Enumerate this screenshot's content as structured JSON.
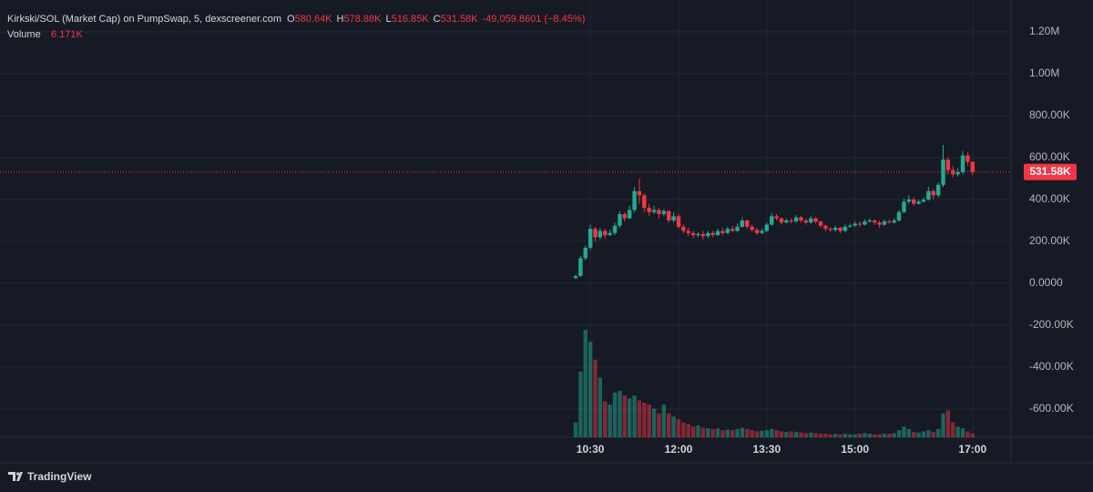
{
  "chart_data": {
    "type": "candlestick",
    "title": "Kirkski/SOL (Market Cap) on PumpSwap, 5, dexscreener.com",
    "ohlc_legend": [
      {
        "key": "O",
        "value": "580.64K"
      },
      {
        "key": "H",
        "value": "578.88K"
      },
      {
        "key": "L",
        "value": "516.85K"
      },
      {
        "key": "C",
        "value": "531.58K"
      }
    ],
    "change": "-49,059.8601 (−8.45%)",
    "last_price_label": "531.58K",
    "brand": "TradingView",
    "up_color": "#22ab94",
    "down_color": "#f23645",
    "grid": true,
    "x": [
      "10:15",
      "10:20",
      "10:25",
      "10:30",
      "10:35",
      "10:40",
      "10:45",
      "10:50",
      "10:55",
      "11:00",
      "11:05",
      "11:10",
      "11:15",
      "11:20",
      "11:25",
      "11:30",
      "11:35",
      "11:40",
      "11:45",
      "11:50",
      "11:55",
      "12:00",
      "12:05",
      "12:10",
      "12:15",
      "12:20",
      "12:25",
      "12:30",
      "12:35",
      "12:40",
      "12:45",
      "12:50",
      "12:55",
      "13:00",
      "13:05",
      "13:10",
      "13:15",
      "13:20",
      "13:25",
      "13:30",
      "13:35",
      "13:40",
      "13:45",
      "13:50",
      "13:55",
      "14:00",
      "14:05",
      "14:10",
      "14:15",
      "14:20",
      "14:25",
      "14:30",
      "14:35",
      "14:40",
      "14:45",
      "14:50",
      "14:55",
      "15:00",
      "15:05",
      "15:10",
      "15:15",
      "15:20",
      "15:25",
      "15:30",
      "15:35",
      "15:40",
      "15:45",
      "15:50",
      "15:55",
      "16:00",
      "16:05",
      "16:10",
      "16:15",
      "16:20",
      "16:25",
      "16:30",
      "16:35",
      "16:40",
      "16:45",
      "16:50",
      "16:55",
      "17:00"
    ],
    "open": [
      25000,
      35000,
      120000,
      170000,
      260000,
      220000,
      250000,
      230000,
      240000,
      275000,
      330000,
      310000,
      350000,
      440000,
      420000,
      360000,
      340000,
      350000,
      330000,
      345000,
      300000,
      320000,
      270000,
      250000,
      240000,
      230000,
      235000,
      225000,
      240000,
      230000,
      250000,
      240000,
      260000,
      250000,
      270000,
      300000,
      270000,
      255000,
      240000,
      250000,
      280000,
      320000,
      310000,
      290000,
      300000,
      295000,
      315000,
      300000,
      290000,
      310000,
      295000,
      275000,
      260000,
      255000,
      265000,
      250000,
      270000,
      275000,
      285000,
      280000,
      295000,
      300000,
      290000,
      280000,
      295000,
      290000,
      300000,
      340000,
      390000,
      400000,
      380000,
      390000,
      400000,
      440000,
      420000,
      470000,
      590000,
      540000,
      520000,
      530000,
      610000,
      580640
    ],
    "high": [
      40000,
      130000,
      180000,
      280000,
      270000,
      265000,
      260000,
      255000,
      290000,
      345000,
      340000,
      370000,
      460000,
      500000,
      430000,
      380000,
      370000,
      360000,
      355000,
      350000,
      340000,
      330000,
      280000,
      265000,
      250000,
      245000,
      250000,
      250000,
      250000,
      260000,
      265000,
      270000,
      275000,
      285000,
      315000,
      305000,
      280000,
      265000,
      262000,
      290000,
      335000,
      330000,
      315000,
      310000,
      310000,
      325000,
      320000,
      310000,
      320000,
      315000,
      300000,
      280000,
      270000,
      275000,
      270000,
      280000,
      285000,
      295000,
      295000,
      305000,
      310000,
      305000,
      300000,
      305000,
      305000,
      310000,
      350000,
      405000,
      420000,
      410000,
      400000,
      410000,
      460000,
      450000,
      480000,
      660000,
      600000,
      560000,
      550000,
      630000,
      625000,
      578880
    ],
    "low": [
      20000,
      30000,
      110000,
      160000,
      200000,
      210000,
      215000,
      225000,
      230000,
      265000,
      295000,
      305000,
      340000,
      380000,
      340000,
      320000,
      330000,
      310000,
      320000,
      290000,
      290000,
      260000,
      240000,
      225000,
      215000,
      220000,
      210000,
      215000,
      220000,
      225000,
      230000,
      235000,
      245000,
      245000,
      265000,
      260000,
      245000,
      230000,
      235000,
      245000,
      275000,
      300000,
      280000,
      285000,
      285000,
      290000,
      290000,
      280000,
      285000,
      285000,
      265000,
      250000,
      245000,
      245000,
      240000,
      245000,
      265000,
      270000,
      270000,
      275000,
      290000,
      280000,
      265000,
      275000,
      285000,
      285000,
      295000,
      335000,
      380000,
      370000,
      375000,
      385000,
      395000,
      400000,
      410000,
      460000,
      520000,
      505000,
      510000,
      520000,
      560000,
      516850
    ],
    "close": [
      35000,
      120000,
      170000,
      260000,
      220000,
      250000,
      230000,
      240000,
      275000,
      330000,
      310000,
      350000,
      440000,
      420000,
      360000,
      340000,
      350000,
      330000,
      345000,
      300000,
      320000,
      270000,
      250000,
      240000,
      230000,
      235000,
      225000,
      240000,
      230000,
      250000,
      240000,
      260000,
      250000,
      270000,
      300000,
      270000,
      255000,
      240000,
      250000,
      280000,
      320000,
      310000,
      290000,
      300000,
      295000,
      315000,
      300000,
      290000,
      310000,
      295000,
      275000,
      260000,
      255000,
      265000,
      250000,
      270000,
      275000,
      285000,
      280000,
      295000,
      300000,
      290000,
      280000,
      295000,
      290000,
      300000,
      340000,
      390000,
      400000,
      380000,
      390000,
      400000,
      440000,
      420000,
      470000,
      590000,
      540000,
      520000,
      530000,
      610000,
      580000,
      531580
    ],
    "volume": {
      "name": "Volume",
      "last_label": "6.171K",
      "values": [
        25000,
        110000,
        180000,
        160000,
        130000,
        100000,
        60000,
        55000,
        75000,
        78000,
        70000,
        65000,
        70000,
        62000,
        58000,
        55000,
        48000,
        40000,
        55000,
        40000,
        35000,
        30000,
        25000,
        22000,
        18000,
        20000,
        16000,
        15000,
        14000,
        15000,
        12000,
        13000,
        12000,
        14000,
        16000,
        14000,
        12000,
        10000,
        11000,
        12000,
        14000,
        12000,
        10000,
        9000,
        10000,
        9000,
        8000,
        7000,
        8000,
        7000,
        6000,
        6000,
        5000,
        6000,
        5000,
        6000,
        5000,
        5000,
        6000,
        7000,
        6000,
        5000,
        5000,
        6000,
        6000,
        7000,
        12000,
        18000,
        14000,
        9000,
        8000,
        10000,
        12000,
        9000,
        14000,
        40000,
        45000,
        25000,
        18000,
        15000,
        10000,
        6171
      ]
    },
    "ylim": [
      -735000,
      1352000
    ],
    "yticks": [
      {
        "value": 1200000,
        "label": "1.20M"
      },
      {
        "value": 1000000,
        "label": "1.00M"
      },
      {
        "value": 800000,
        "label": "800.00K"
      },
      {
        "value": 600000,
        "label": "600.00K"
      },
      {
        "value": 400000,
        "label": "400.00K"
      },
      {
        "value": 200000,
        "label": "200.00K"
      },
      {
        "value": 0,
        "label": "0.0000"
      },
      {
        "value": -200000,
        "label": "-200.00K"
      },
      {
        "value": -400000,
        "label": "-400.00K"
      },
      {
        "value": -600000,
        "label": "-600.00K"
      }
    ],
    "xticks": [
      "10:30",
      "12:00",
      "13:30",
      "15:00",
      "17:00"
    ]
  }
}
